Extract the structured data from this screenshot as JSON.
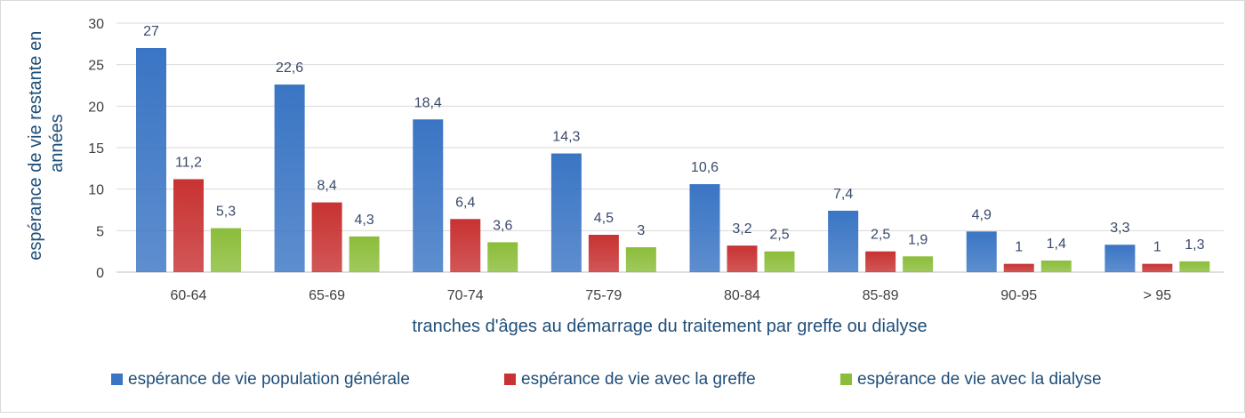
{
  "chart_data": {
    "type": "bar",
    "title": "",
    "xlabel": "tranches d'âges au démarrage du traitement par greffe ou dialyse",
    "ylabel_lines": [
      "espérance de vie restante en",
      "années"
    ],
    "ylim": [
      0,
      30
    ],
    "yticks": [
      "0",
      "5",
      "10",
      "15",
      "20",
      "25",
      "30"
    ],
    "ytick_values": [
      0,
      5,
      10,
      15,
      20,
      25,
      30
    ],
    "grid": true,
    "legend_position": "bottom",
    "categories": [
      "60-64",
      "65-69",
      "70-74",
      "75-79",
      "80-84",
      "85-89",
      "90-95",
      "> 95"
    ],
    "series": [
      {
        "name": "espérance de vie population générale",
        "color": "#3a75c4",
        "values": [
          27,
          22.6,
          18.4,
          14.3,
          10.6,
          7.4,
          4.9,
          3.3
        ],
        "labels": [
          "27",
          "22,6",
          "18,4",
          "14,3",
          "10,6",
          "7,4",
          "4,9",
          "3,3"
        ]
      },
      {
        "name": "espérance de vie avec la greffe",
        "color": "#c83232",
        "values": [
          11.2,
          8.4,
          6.4,
          4.5,
          3.2,
          2.5,
          1,
          1
        ],
        "labels": [
          "11,2",
          "8,4",
          "6,4",
          "4,5",
          "3,2",
          "2,5",
          "1",
          "1"
        ]
      },
      {
        "name": "espérance de vie avec la dialyse",
        "color": "#8bbd3a",
        "values": [
          5.3,
          4.3,
          3.6,
          3,
          2.5,
          1.9,
          1.4,
          1.3
        ],
        "labels": [
          "5,3",
          "4,3",
          "3,6",
          "3",
          "2,5",
          "1,9",
          "1,4",
          "1,3"
        ]
      }
    ]
  }
}
